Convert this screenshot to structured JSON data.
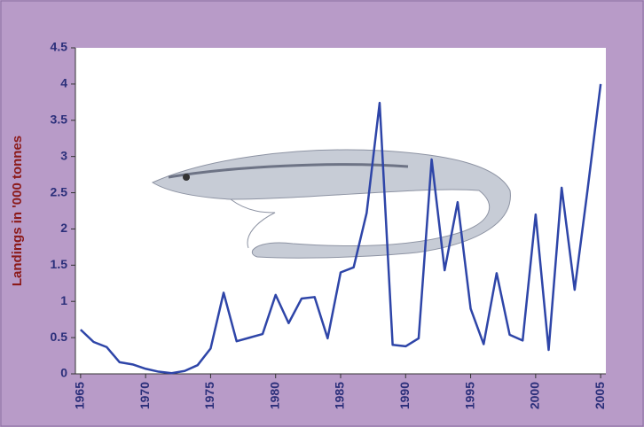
{
  "chart_data": {
    "type": "line",
    "y_label": "Landings in '000 tonnes",
    "x": [
      1965,
      1966,
      1967,
      1968,
      1969,
      1970,
      1971,
      1972,
      1973,
      1974,
      1975,
      1976,
      1977,
      1978,
      1979,
      1980,
      1981,
      1982,
      1983,
      1984,
      1985,
      1986,
      1987,
      1988,
      1989,
      1990,
      1991,
      1992,
      1993,
      1994,
      1995,
      1996,
      1997,
      1998,
      1999,
      2000,
      2001,
      2002,
      2003,
      2004,
      2005
    ],
    "series": [
      {
        "color": "#2e45a8",
        "values": [
          0.61,
          0.44,
          0.37,
          0.16,
          0.13,
          0.07,
          0.03,
          0.01,
          0.04,
          0.12,
          0.35,
          1.12,
          0.45,
          0.5,
          0.55,
          1.09,
          0.7,
          1.04,
          1.06,
          0.49,
          1.4,
          1.47,
          2.22,
          3.74,
          0.4,
          0.38,
          0.49,
          2.96,
          1.43,
          2.37,
          0.9,
          0.41,
          1.39,
          0.54,
          0.46,
          2.2,
          0.33,
          2.57,
          1.16,
          2.55,
          4.0
        ]
      }
    ],
    "xlim": [
      1964.6,
      2005.4
    ],
    "xticks": [
      1965,
      1970,
      1975,
      1980,
      1985,
      1990,
      1995,
      2000,
      2005
    ],
    "ylim": [
      0,
      4.5
    ],
    "yticks": [
      0,
      0.5,
      1,
      1.5,
      2,
      2.5,
      3,
      3.5,
      4,
      4.5
    ]
  }
}
